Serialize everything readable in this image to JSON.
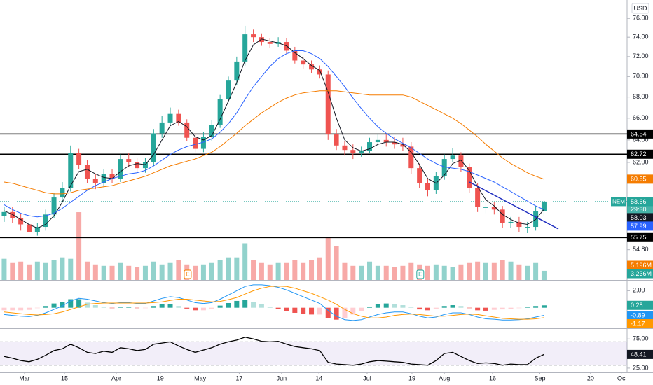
{
  "chart_data": {
    "type": "candlestick",
    "symbol": "NEM",
    "currency": "USD",
    "countdown": "29:30",
    "log_scale": true,
    "ylim": [
      52.5,
      78
    ],
    "yticks": [
      {
        "value": 76,
        "label": "76.00"
      },
      {
        "value": 74,
        "label": "74.00"
      },
      {
        "value": 72,
        "label": "72.00"
      },
      {
        "value": 70,
        "label": "70.00"
      },
      {
        "value": 68,
        "label": "68.00"
      },
      {
        "value": 66,
        "label": "66.00"
      },
      {
        "value": 64,
        "label": "64.00"
      },
      {
        "value": 62,
        "label": "62.00"
      },
      {
        "value": 54.8,
        "label": "54.80"
      }
    ],
    "xlim": [
      0,
      75.5
    ],
    "xticks": [
      {
        "value": 2.95,
        "label": "Mar"
      },
      {
        "value": 7.76,
        "label": "15"
      },
      {
        "value": 14.0,
        "label": "Apr"
      },
      {
        "value": 19.3,
        "label": "19"
      },
      {
        "value": 24.1,
        "label": "May"
      },
      {
        "value": 28.8,
        "label": "17"
      },
      {
        "value": 33.9,
        "label": "Jun"
      },
      {
        "value": 38.4,
        "label": "14"
      },
      {
        "value": 44.2,
        "label": "Jul"
      },
      {
        "value": 49.6,
        "label": "19"
      },
      {
        "value": 53.5,
        "label": "Aug"
      },
      {
        "value": 59.3,
        "label": "16"
      },
      {
        "value": 65.0,
        "label": "Sep"
      },
      {
        "value": 71.1,
        "label": "20"
      },
      {
        "value": 74.8,
        "label": "Oc"
      }
    ],
    "up_color": "#26a69a",
    "down_color": "#ef5350",
    "open": [
      57.5,
      57.8,
      57.3,
      56.8,
      56.2,
      56.6,
      57.6,
      59.0,
      59.8,
      62.8,
      61.8,
      60.6,
      60.2,
      61.0,
      60.6,
      62.3,
      62.0,
      61.5,
      62.0,
      64.6,
      65.6,
      66.4,
      65.6,
      64.2,
      63.2,
      64.3,
      65.4,
      67.8,
      69.6,
      71.5,
      74.3,
      74.0,
      73.5,
      73.3,
      73.5,
      72.6,
      71.6,
      71.2,
      70.7,
      70.2,
      64.5,
      63.5,
      63.1,
      62.8,
      63.0,
      63.8,
      64.0,
      63.8,
      63.6,
      63.4,
      61.5,
      60.2,
      59.6,
      60.8,
      62.3,
      62.6,
      61.6,
      59.8,
      58.2,
      58.2,
      58.0,
      56.9,
      57.0,
      56.6,
      56.6,
      57.9
    ],
    "high": [
      58.2,
      58.2,
      57.7,
      57.2,
      56.9,
      58.0,
      59.4,
      60.3,
      63.5,
      63.2,
      62.2,
      61.0,
      61.4,
      61.4,
      62.7,
      62.8,
      62.4,
      62.4,
      65.0,
      66.2,
      67.0,
      66.8,
      65.9,
      64.6,
      64.7,
      65.8,
      68.2,
      70.0,
      72.0,
      75.2,
      74.8,
      74.4,
      73.9,
      74.0,
      73.9,
      73.0,
      72.0,
      71.6,
      71.1,
      70.6,
      65.0,
      63.9,
      63.6,
      63.4,
      64.2,
      64.5,
      64.6,
      64.3,
      64.2,
      63.8,
      61.9,
      60.6,
      61.2,
      62.7,
      63.3,
      62.9,
      61.9,
      60.2,
      58.7,
      58.6,
      58.3,
      57.4,
      57.4,
      57.0,
      58.3,
      58.8
    ],
    "low": [
      57.0,
      56.9,
      56.3,
      55.8,
      55.9,
      56.3,
      57.3,
      58.7,
      59.5,
      61.4,
      60.2,
      59.7,
      59.9,
      60.2,
      60.3,
      61.6,
      61.1,
      61.1,
      61.7,
      64.2,
      65.3,
      65.3,
      63.9,
      62.9,
      62.9,
      63.9,
      65.1,
      67.5,
      69.2,
      71.1,
      73.5,
      73.1,
      72.9,
      73.0,
      72.3,
      71.3,
      70.8,
      70.3,
      69.8,
      64.0,
      63.1,
      62.6,
      62.3,
      62.5,
      62.8,
      63.5,
      63.4,
      63.2,
      63.0,
      61.0,
      59.8,
      59.1,
      59.3,
      60.5,
      62.0,
      61.2,
      59.4,
      57.8,
      57.7,
      57.6,
      56.5,
      56.5,
      56.2,
      56.1,
      56.3,
      57.5
    ],
    "close": [
      57.8,
      57.3,
      56.8,
      56.2,
      56.6,
      57.6,
      59.0,
      59.8,
      62.8,
      61.8,
      60.6,
      60.2,
      61.0,
      60.6,
      62.3,
      62.0,
      61.5,
      62.0,
      64.6,
      65.6,
      66.4,
      65.6,
      64.2,
      63.2,
      64.3,
      65.4,
      67.8,
      69.6,
      71.5,
      74.3,
      74.0,
      73.5,
      73.3,
      73.5,
      72.6,
      71.6,
      71.2,
      70.7,
      70.2,
      64.5,
      63.5,
      63.1,
      62.8,
      63.0,
      63.8,
      64.0,
      63.8,
      63.6,
      63.4,
      61.5,
      60.2,
      59.6,
      60.8,
      62.3,
      62.6,
      61.6,
      59.8,
      58.2,
      58.2,
      58.0,
      56.9,
      57.0,
      56.6,
      56.6,
      57.9,
      58.66
    ],
    "series": [
      {
        "color": "#131722",
        "values": [
          57.9,
          57.6,
          57.2,
          56.8,
          56.5,
          56.8,
          57.5,
          58.6,
          60.0,
          61.2,
          61.4,
          61.0,
          60.7,
          60.6,
          61.2,
          61.7,
          61.9,
          61.8,
          62.7,
          64.0,
          65.3,
          65.7,
          65.2,
          64.3,
          64.0,
          64.4,
          65.9,
          67.6,
          69.4,
          71.6,
          73.2,
          73.8,
          73.6,
          73.4,
          73.1,
          72.4,
          71.8,
          71.1,
          70.6,
          68.5,
          66.0,
          64.0,
          63.3,
          63.0,
          63.2,
          63.6,
          63.8,
          63.8,
          63.6,
          62.9,
          61.8,
          60.6,
          60.2,
          60.9,
          61.9,
          62.2,
          61.3,
          59.9,
          58.8,
          58.3,
          57.6,
          57.2,
          56.9,
          56.8,
          57.2,
          58.03
        ]
      },
      {
        "color": "#2962ff",
        "values": [
          58.4,
          58.0,
          57.7,
          57.5,
          57.4,
          57.5,
          57.7,
          58.1,
          58.6,
          59.1,
          59.6,
          60.0,
          60.3,
          60.6,
          60.8,
          61.0,
          61.1,
          61.3,
          61.7,
          62.2,
          62.7,
          63.1,
          63.4,
          63.6,
          63.8,
          64.1,
          64.7,
          65.5,
          66.5,
          67.8,
          69.0,
          70.0,
          71.0,
          71.8,
          72.3,
          72.6,
          72.6,
          72.3,
          71.8,
          71.0,
          70.0,
          69.0,
          67.9,
          66.9,
          66.0,
          65.2,
          64.6,
          64.1,
          63.7,
          63.3,
          62.8,
          62.3,
          61.9,
          61.6,
          61.5,
          61.4,
          61.2,
          60.9,
          60.6,
          60.3,
          59.9,
          59.5,
          59.1,
          58.7,
          58.3,
          57.99
        ]
      },
      {
        "color": "#f57c00",
        "values": [
          60.3,
          60.2,
          60.0,
          59.8,
          59.6,
          59.4,
          59.3,
          59.3,
          59.4,
          59.6,
          59.7,
          59.8,
          59.9,
          60.0,
          60.2,
          60.4,
          60.6,
          60.8,
          61.1,
          61.4,
          61.7,
          61.9,
          62.1,
          62.3,
          62.6,
          62.9,
          63.4,
          64.0,
          64.6,
          65.3,
          65.9,
          66.5,
          67.0,
          67.5,
          67.9,
          68.2,
          68.4,
          68.5,
          68.6,
          68.6,
          68.6,
          68.5,
          68.4,
          68.3,
          68.2,
          68.2,
          68.2,
          68.2,
          68.2,
          68.0,
          67.6,
          67.2,
          66.8,
          66.4,
          66.0,
          65.5,
          64.9,
          64.3,
          63.6,
          63.0,
          62.4,
          61.9,
          61.5,
          61.1,
          60.8,
          60.55
        ]
      }
    ],
    "levels": [
      64.54,
      62.72,
      55.75
    ],
    "level_color": "#000000",
    "events": [
      {
        "label": "E",
        "x": 22.6,
        "color": "#f57c00"
      },
      {
        "label": "E",
        "x": 50.6,
        "color": "#26a69a"
      }
    ],
    "volume": {
      "ylim": [
        0,
        24.75
      ],
      "values": [
        7.5,
        6,
        6.5,
        5.5,
        6.5,
        6,
        7,
        8,
        7.5,
        24,
        6.5,
        5.5,
        5,
        5,
        6,
        5,
        4.5,
        5,
        6.5,
        5.5,
        6,
        7,
        5.5,
        5,
        5.5,
        6,
        7,
        8,
        8,
        13,
        7,
        6,
        5.5,
        6,
        6,
        7,
        6,
        7,
        8,
        15,
        12,
        6,
        5,
        5,
        6.5,
        5,
        5,
        4.5,
        5,
        6,
        5.5,
        5,
        5.5,
        5,
        4.5,
        5.5,
        6,
        6.5,
        6,
        6,
        7,
        6.5,
        5.5,
        5,
        6,
        3.236
      ],
      "last_label": "3.236M",
      "ma": {
        "value": 5.196,
        "label": "5.196M",
        "color": "#f57c00"
      }
    },
    "macd": {
      "ylim": [
        -2.33,
        3.1
      ],
      "yticks": [
        {
          "value": 2,
          "label": "2.00"
        }
      ],
      "histogram": [
        -0.3,
        -0.3,
        -0.3,
        -0.25,
        -0.05,
        0.2,
        0.5,
        0.7,
        1.0,
        1.0,
        0.6,
        0.3,
        0.05,
        -0.05,
        0.05,
        0.05,
        -0.05,
        -0.05,
        0.2,
        0.4,
        0.45,
        0.2,
        -0.1,
        -0.3,
        -0.3,
        -0.1,
        0.25,
        0.55,
        0.8,
        0.9,
        0.7,
        0.4,
        0.1,
        -0.15,
        -0.4,
        -0.6,
        -0.7,
        -0.8,
        -0.8,
        -1.2,
        -1.4,
        -1.2,
        -0.8,
        -0.4,
        0.1,
        0.4,
        0.5,
        0.4,
        0.3,
        0.05,
        -0.2,
        -0.3,
        -0.1,
        0.2,
        0.3,
        0.2,
        -0.05,
        -0.3,
        -0.35,
        -0.25,
        -0.2,
        -0.15,
        -0.05,
        0.05,
        0.2,
        0.28
      ],
      "lines": [
        {
          "color": "#2196f3",
          "values": [
            -0.8,
            -0.9,
            -1.0,
            -1.05,
            -0.9,
            -0.6,
            -0.2,
            0.2,
            0.8,
            1.1,
            1.0,
            0.8,
            0.6,
            0.5,
            0.6,
            0.6,
            0.5,
            0.5,
            0.8,
            1.1,
            1.3,
            1.2,
            0.9,
            0.6,
            0.5,
            0.6,
            1.0,
            1.5,
            2.0,
            2.5,
            2.7,
            2.7,
            2.6,
            2.4,
            2.1,
            1.7,
            1.3,
            0.9,
            0.5,
            -0.3,
            -1.0,
            -1.4,
            -1.5,
            -1.4,
            -1.1,
            -0.8,
            -0.6,
            -0.5,
            -0.5,
            -0.7,
            -1.0,
            -1.2,
            -1.1,
            -0.8,
            -0.6,
            -0.6,
            -0.8,
            -1.1,
            -1.3,
            -1.35,
            -1.45,
            -1.45,
            -1.4,
            -1.3,
            -1.1,
            -0.89
          ]
        },
        {
          "color": "#ff9800",
          "values": [
            -0.5,
            -0.6,
            -0.7,
            -0.8,
            -0.85,
            -0.8,
            -0.7,
            -0.5,
            -0.2,
            0.1,
            0.4,
            0.5,
            0.55,
            0.55,
            0.55,
            0.55,
            0.55,
            0.55,
            0.6,
            0.7,
            0.85,
            1.0,
            1.0,
            0.9,
            0.8,
            0.7,
            0.75,
            0.95,
            1.2,
            1.6,
            2.0,
            2.3,
            2.5,
            2.55,
            2.5,
            2.3,
            2.0,
            1.7,
            1.3,
            0.9,
            0.4,
            -0.2,
            -0.7,
            -1.0,
            -1.2,
            -1.2,
            -1.1,
            -0.9,
            -0.8,
            -0.75,
            -0.8,
            -0.9,
            -1.0,
            -1.0,
            -0.9,
            -0.8,
            -0.75,
            -0.8,
            -0.95,
            -1.1,
            -1.25,
            -1.3,
            -1.35,
            -1.35,
            -1.3,
            -1.17
          ]
        }
      ]
    },
    "rsi": {
      "ylim": [
        17.7,
        90.9
      ],
      "yticks": [
        {
          "value": 75,
          "label": "75.00"
        },
        {
          "value": 25,
          "label": "25.00"
        }
      ],
      "band": [
        30,
        70
      ],
      "color": "#000000",
      "values": [
        45,
        42,
        38,
        36,
        40,
        47,
        55,
        58,
        66,
        60,
        52,
        50,
        54,
        52,
        60,
        58,
        55,
        57,
        66,
        68,
        70,
        63,
        57,
        52,
        56,
        60,
        66,
        70,
        73,
        78,
        75,
        71,
        70,
        71,
        66,
        62,
        60,
        58,
        55,
        35,
        32,
        31,
        30,
        32,
        36,
        38,
        37,
        36,
        35,
        32,
        31,
        30,
        38,
        50,
        52,
        45,
        38,
        33,
        34,
        33,
        30,
        32,
        31,
        31,
        42,
        48.41
      ]
    }
  }
}
